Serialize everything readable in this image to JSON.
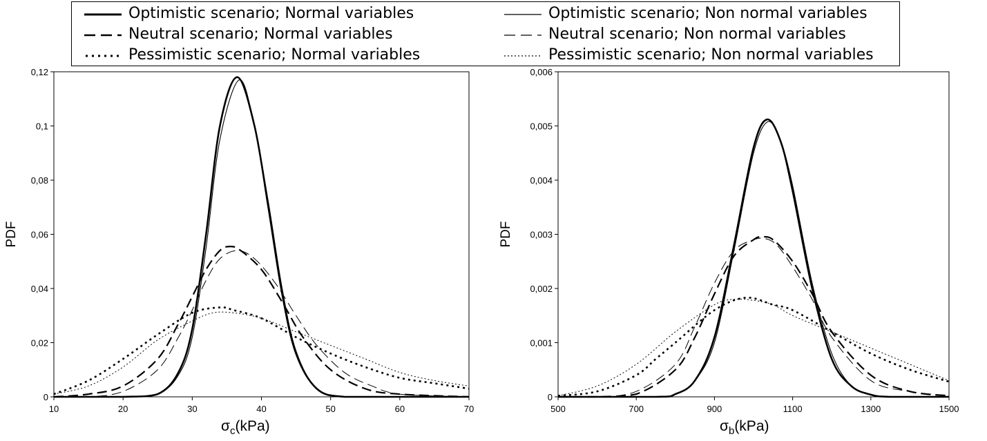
{
  "legend": {
    "entries": [
      {
        "label": "Optimistic scenario; Normal variables",
        "style": "solid-thick"
      },
      {
        "label": "Neutral scenario; Normal variables",
        "style": "dash-thick"
      },
      {
        "label": "Pessimistic scenario; Normal variables",
        "style": "dot-thick"
      },
      {
        "label": "Optimistic scenario; Non normal variables",
        "style": "solid-thin"
      },
      {
        "label": "Neutral scenario; Non normal variables",
        "style": "dash-thin"
      },
      {
        "label": "Pessimistic scenario; Non normal variables",
        "style": "dot-thin"
      }
    ]
  },
  "chart_data": [
    {
      "type": "line",
      "title": "",
      "xlabel_symbol": "σ",
      "xlabel_sub": "c",
      "xlabel_unit": "(kPa)",
      "ylabel": "PDF",
      "xlim": [
        10,
        70
      ],
      "ylim": [
        0,
        0.12
      ],
      "xticks": [
        10,
        20,
        30,
        40,
        50,
        60,
        70
      ],
      "xtick_labels": [
        "10",
        "20",
        "30",
        "40",
        "50",
        "60",
        "70"
      ],
      "yticks": [
        0,
        0.02,
        0.04,
        0.06,
        0.08,
        0.1,
        0.12
      ],
      "ytick_labels": [
        "0",
        "0,02",
        "0,04",
        "0,06",
        "0,08",
        "0,1",
        "0,12"
      ],
      "grid": false,
      "series": [
        {
          "name": "Optimistic scenario; Normal variables",
          "style": "solid-thick",
          "x": [
            10,
            20,
            25,
            28,
            30,
            32,
            34,
            36.5,
            39,
            41,
            43,
            45,
            48,
            52,
            60,
            70
          ],
          "y": [
            0,
            0,
            0.001,
            0.009,
            0.025,
            0.06,
            0.1,
            0.118,
            0.1,
            0.07,
            0.038,
            0.016,
            0.003,
            0,
            0,
            0
          ]
        },
        {
          "name": "Neutral scenario; Normal variables",
          "style": "dash-thick",
          "x": [
            10,
            15,
            20,
            25,
            28,
            30,
            32,
            34,
            35.5,
            37,
            40,
            43,
            46,
            50,
            55,
            60,
            70
          ],
          "y": [
            0,
            0.001,
            0.004,
            0.014,
            0.027,
            0.037,
            0.047,
            0.054,
            0.0555,
            0.054,
            0.047,
            0.035,
            0.022,
            0.01,
            0.003,
            0.001,
            0
          ]
        },
        {
          "name": "Pessimistic scenario; Normal variables",
          "style": "dot-thick",
          "x": [
            10,
            15,
            20,
            25,
            30,
            34,
            36,
            40,
            45,
            50,
            55,
            60,
            65,
            70
          ],
          "y": [
            0.001,
            0.006,
            0.014,
            0.023,
            0.031,
            0.033,
            0.032,
            0.029,
            0.022,
            0.016,
            0.011,
            0.007,
            0.005,
            0.003
          ]
        },
        {
          "name": "Optimistic scenario; Non normal variables",
          "style": "solid-thin",
          "x": [
            10,
            20,
            25,
            28,
            30,
            32,
            34,
            36.8,
            39,
            41,
            43,
            45,
            48,
            52,
            60,
            70
          ],
          "y": [
            0,
            0,
            0.001,
            0.008,
            0.022,
            0.055,
            0.095,
            0.117,
            0.1,
            0.072,
            0.04,
            0.017,
            0.003,
            0,
            0,
            0
          ]
        },
        {
          "name": "Neutral scenario; Non normal variables",
          "style": "dash-thin",
          "x": [
            10,
            15,
            20,
            25,
            28,
            30,
            32,
            34,
            36.5,
            39,
            42,
            45,
            48,
            52,
            56,
            60,
            70
          ],
          "y": [
            0,
            0,
            0.002,
            0.01,
            0.022,
            0.032,
            0.043,
            0.051,
            0.054,
            0.051,
            0.042,
            0.03,
            0.019,
            0.009,
            0.004,
            0.001,
            0
          ]
        },
        {
          "name": "Pessimistic scenario; Non normal variables",
          "style": "dot-thin",
          "x": [
            10,
            15,
            20,
            25,
            30,
            33,
            36,
            40,
            45,
            50,
            55,
            60,
            65,
            70
          ],
          "y": [
            0.001,
            0.004,
            0.011,
            0.021,
            0.028,
            0.031,
            0.031,
            0.029,
            0.024,
            0.019,
            0.014,
            0.009,
            0.006,
            0.004
          ]
        }
      ]
    },
    {
      "type": "line",
      "title": "",
      "xlabel_symbol": "σ",
      "xlabel_sub": "b",
      "xlabel_unit": "(kPa)",
      "ylabel": "PDF",
      "xlim": [
        500,
        1500
      ],
      "ylim": [
        0,
        0.006
      ],
      "xticks": [
        500,
        700,
        900,
        1100,
        1300,
        1500
      ],
      "xtick_labels": [
        "500",
        "700",
        "900",
        "1100",
        "1300",
        "1500"
      ],
      "yticks": [
        0,
        0.001,
        0.002,
        0.003,
        0.004,
        0.005,
        0.006
      ],
      "ytick_labels": [
        "0",
        "0,001",
        "0,002",
        "0,003",
        "0,004",
        "0,005",
        "0,006"
      ],
      "grid": false,
      "series": [
        {
          "name": "Optimistic scenario; Normal variables",
          "style": "solid-thick",
          "x": [
            500,
            750,
            800,
            850,
            900,
            950,
            1000,
            1035,
            1070,
            1100,
            1150,
            1200,
            1250,
            1300,
            1350,
            1500
          ],
          "y": [
            0,
            0,
            5e-05,
            0.0003,
            0.0011,
            0.0028,
            0.0046,
            0.00512,
            0.0047,
            0.0038,
            0.002,
            0.0007,
            0.0002,
            4e-05,
            0,
            0
          ]
        },
        {
          "name": "Neutral scenario; Normal variables",
          "style": "dash-thick",
          "x": [
            500,
            600,
            700,
            800,
            850,
            900,
            950,
            1000,
            1020,
            1050,
            1100,
            1150,
            1200,
            1300,
            1400,
            1500
          ],
          "y": [
            0,
            0,
            5e-05,
            0.0005,
            0.0011,
            0.0019,
            0.0026,
            0.0029,
            0.00295,
            0.0029,
            0.0025,
            0.0019,
            0.0012,
            0.0004,
            0.0001,
            2e-05
          ]
        },
        {
          "name": "Pessimistic scenario; Normal variables",
          "style": "dot-thick",
          "x": [
            500,
            600,
            700,
            750,
            800,
            900,
            980,
            1050,
            1100,
            1200,
            1300,
            1400,
            1500
          ],
          "y": [
            2e-05,
            0.0001,
            0.0004,
            0.0007,
            0.001,
            0.0016,
            0.00183,
            0.0017,
            0.0016,
            0.0012,
            0.0008,
            0.0005,
            0.00028
          ]
        },
        {
          "name": "Optimistic scenario; Non normal variables",
          "style": "solid-thin",
          "x": [
            500,
            750,
            800,
            850,
            900,
            950,
            1000,
            1037,
            1070,
            1100,
            1150,
            1200,
            1250,
            1300,
            1350,
            1500
          ],
          "y": [
            0,
            0,
            5e-05,
            0.0003,
            0.001,
            0.0027,
            0.0045,
            0.00508,
            0.0047,
            0.0039,
            0.0021,
            0.0008,
            0.0002,
            4e-05,
            0,
            0
          ]
        },
        {
          "name": "Neutral scenario; Non normal variables",
          "style": "dash-thin",
          "x": [
            500,
            600,
            700,
            800,
            850,
            900,
            950,
            1000,
            1030,
            1060,
            1100,
            1150,
            1200,
            1300,
            1400,
            1500
          ],
          "y": [
            0,
            0,
            0.0001,
            0.0006,
            0.0013,
            0.0021,
            0.0027,
            0.0029,
            0.00292,
            0.0028,
            0.0024,
            0.0018,
            0.0011,
            0.0003,
            0.0001,
            2e-05
          ]
        },
        {
          "name": "Pessimistic scenario; Non normal variables",
          "style": "dot-thin",
          "x": [
            500,
            600,
            700,
            800,
            900,
            950,
            1000,
            1050,
            1100,
            1200,
            1300,
            1400,
            1500
          ],
          "y": [
            2e-05,
            0.0002,
            0.0006,
            0.0012,
            0.0017,
            0.0018,
            0.00178,
            0.0017,
            0.0015,
            0.0012,
            0.0009,
            0.0006,
            0.0003
          ]
        }
      ]
    }
  ]
}
